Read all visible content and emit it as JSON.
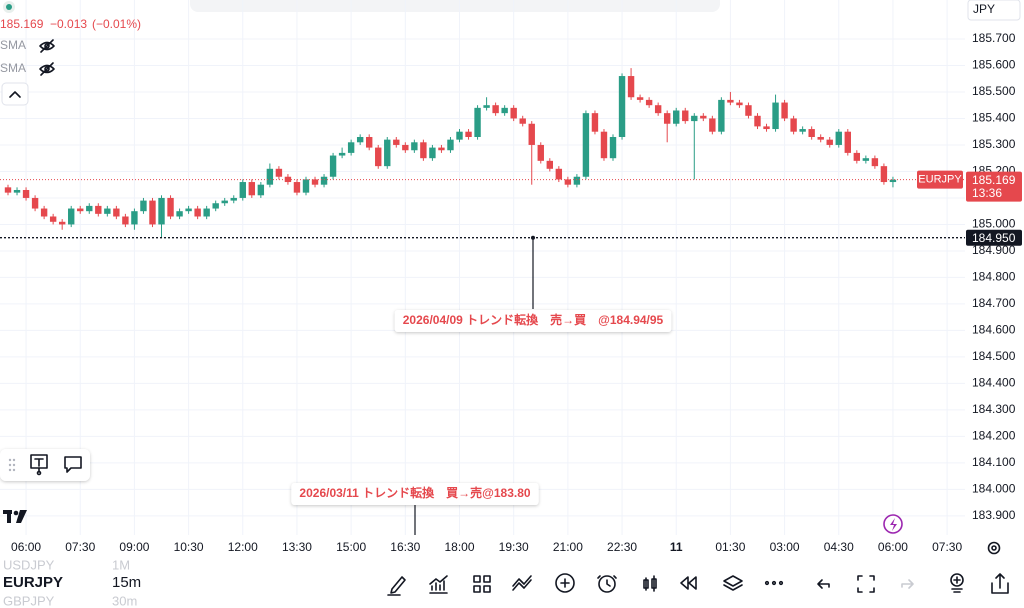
{
  "chart_data": {
    "type": "candlestick",
    "symbol": "EURJPY",
    "currency": "JPY",
    "legend": {
      "last": "185.169",
      "change": "−0.013",
      "change_pct": "(−0.01%)"
    },
    "indicators": [
      "SMA",
      "SMA"
    ],
    "categories": [
      null,
      null,
      "06:00",
      null,
      null,
      null,
      null,
      null,
      "07:30",
      null,
      null,
      null,
      null,
      null,
      "09:00",
      null,
      null,
      null,
      null,
      null,
      "10:30",
      null,
      null,
      null,
      null,
      null,
      "12:00",
      null,
      null,
      null,
      null,
      null,
      "13:30",
      null,
      null,
      null,
      null,
      null,
      "15:00",
      null,
      null,
      null,
      null,
      null,
      "16:30",
      null,
      null,
      null,
      null,
      null,
      "18:00",
      null,
      null,
      null,
      null,
      null,
      "19:30",
      null,
      null,
      null,
      null,
      null,
      "21:00",
      null,
      null,
      null,
      null,
      null,
      "22:30",
      null,
      null,
      null,
      null,
      null,
      "11",
      null,
      null,
      null,
      null,
      null,
      "01:30",
      null,
      null,
      null,
      null,
      null,
      "03:00",
      null,
      null,
      null,
      null,
      null,
      "04:30",
      null,
      null,
      null,
      null,
      null,
      "06:00",
      null,
      null,
      null,
      null,
      null,
      "07:30"
    ],
    "open": [
      185.14,
      185.12,
      185.13,
      185.1,
      185.06,
      185.03,
      185.01,
      185.0,
      185.06,
      185.05,
      185.07,
      185.04,
      185.06,
      185.03,
      185.0,
      185.05,
      185.09,
      185.0,
      185.1,
      185.03,
      185.05,
      185.06,
      185.03,
      185.06,
      185.08,
      185.09,
      185.1,
      185.16,
      185.11,
      185.15,
      185.21,
      185.18,
      185.16,
      185.12,
      185.17,
      185.15,
      185.18,
      185.26,
      185.27,
      185.31,
      185.33,
      185.29,
      185.22,
      185.32,
      185.3,
      185.28,
      185.31,
      185.25,
      185.29,
      185.28,
      185.32,
      185.35,
      185.33,
      185.44,
      185.45,
      185.42,
      185.44,
      185.4,
      185.38,
      185.3,
      185.24,
      185.21,
      185.17,
      185.15,
      185.18,
      185.42,
      185.35,
      185.25,
      185.33,
      185.56,
      185.48,
      185.47,
      185.45,
      185.42,
      185.38,
      185.43,
      185.39,
      185.41,
      185.4,
      185.35,
      185.47,
      185.46,
      185.45,
      185.41,
      185.37,
      185.36,
      185.46,
      185.4,
      185.35,
      185.36,
      185.33,
      185.32,
      185.3,
      185.35,
      185.27,
      185.24,
      185.25,
      185.22,
      185.16,
      null,
      null,
      null,
      null,
      null,
      null
    ],
    "high": [
      185.15,
      185.14,
      185.14,
      185.11,
      185.07,
      185.04,
      185.02,
      185.07,
      185.07,
      185.08,
      185.08,
      185.07,
      185.07,
      185.04,
      185.06,
      185.1,
      185.1,
      185.11,
      185.11,
      185.06,
      185.07,
      185.07,
      185.07,
      185.09,
      185.1,
      185.11,
      185.17,
      185.17,
      185.16,
      185.23,
      185.22,
      185.19,
      185.17,
      185.18,
      185.18,
      185.19,
      185.27,
      185.29,
      185.32,
      185.34,
      185.34,
      185.3,
      185.33,
      185.33,
      185.31,
      185.32,
      185.32,
      185.3,
      185.3,
      185.33,
      185.36,
      185.36,
      185.45,
      185.48,
      185.46,
      185.45,
      185.45,
      185.41,
      185.39,
      185.31,
      185.25,
      185.22,
      185.18,
      185.19,
      185.43,
      185.43,
      185.36,
      185.34,
      185.57,
      185.59,
      185.49,
      185.48,
      185.46,
      185.43,
      185.44,
      185.44,
      185.42,
      185.42,
      185.41,
      185.48,
      185.5,
      185.47,
      185.46,
      185.42,
      185.38,
      185.49,
      185.47,
      185.41,
      185.37,
      185.37,
      185.34,
      185.33,
      185.36,
      185.36,
      185.28,
      185.26,
      185.26,
      185.23,
      185.18,
      null,
      null,
      null,
      null,
      null,
      null
    ],
    "low": [
      185.11,
      185.11,
      185.09,
      185.05,
      185.02,
      185.0,
      184.98,
      184.99,
      185.04,
      185.04,
      185.03,
      185.03,
      185.02,
      184.99,
      184.98,
      185.04,
      184.99,
      184.95,
      185.02,
      185.02,
      185.04,
      185.02,
      185.02,
      185.05,
      185.07,
      185.08,
      185.09,
      185.1,
      185.1,
      185.14,
      185.17,
      185.15,
      185.11,
      185.11,
      185.14,
      185.14,
      185.17,
      185.25,
      185.26,
      185.3,
      185.28,
      185.21,
      185.21,
      185.29,
      185.27,
      185.27,
      185.24,
      185.24,
      185.27,
      185.27,
      185.31,
      185.32,
      185.32,
      185.43,
      185.41,
      185.41,
      185.39,
      185.37,
      185.15,
      185.23,
      185.2,
      185.16,
      185.14,
      185.14,
      185.17,
      185.34,
      185.24,
      185.24,
      185.32,
      185.47,
      185.46,
      185.44,
      185.41,
      185.31,
      185.37,
      185.38,
      185.17,
      185.39,
      185.34,
      185.34,
      185.45,
      185.44,
      185.4,
      185.36,
      185.35,
      185.35,
      185.39,
      185.34,
      185.34,
      185.32,
      185.31,
      185.29,
      185.29,
      185.26,
      185.23,
      185.23,
      185.21,
      185.15,
      185.14,
      null,
      null,
      null,
      null,
      null,
      null
    ],
    "close": [
      185.12,
      185.13,
      185.1,
      185.06,
      185.03,
      185.01,
      185.0,
      185.06,
      185.05,
      185.07,
      185.04,
      185.06,
      185.03,
      185.0,
      185.05,
      185.09,
      185.0,
      185.1,
      185.03,
      185.05,
      185.06,
      185.03,
      185.06,
      185.08,
      185.09,
      185.1,
      185.16,
      185.11,
      185.15,
      185.21,
      185.18,
      185.16,
      185.12,
      185.17,
      185.15,
      185.18,
      185.26,
      185.27,
      185.31,
      185.33,
      185.29,
      185.22,
      185.32,
      185.3,
      185.28,
      185.31,
      185.25,
      185.29,
      185.28,
      185.32,
      185.35,
      185.33,
      185.44,
      185.45,
      185.42,
      185.44,
      185.4,
      185.38,
      185.3,
      185.24,
      185.21,
      185.17,
      185.15,
      185.18,
      185.42,
      185.35,
      185.25,
      185.33,
      185.56,
      185.48,
      185.47,
      185.45,
      185.42,
      185.38,
      185.43,
      185.39,
      185.41,
      185.4,
      185.35,
      185.47,
      185.46,
      185.45,
      185.41,
      185.37,
      185.36,
      185.46,
      185.4,
      185.35,
      185.36,
      185.33,
      185.32,
      185.3,
      185.35,
      185.27,
      185.24,
      185.25,
      185.22,
      185.16,
      185.169,
      null,
      null,
      null,
      null,
      null,
      null
    ],
    "up_color": "#2a9d86",
    "down_color": "#e5484d",
    "ylim": [
      183.828,
      185.847
    ],
    "yticks": [
      {
        "value": 185.7,
        "label": "185.700"
      },
      {
        "value": 185.6,
        "label": "185.600"
      },
      {
        "value": 185.5,
        "label": "185.500"
      },
      {
        "value": 185.4,
        "label": "185.400"
      },
      {
        "value": 185.3,
        "label": "185.300"
      },
      {
        "value": 185.2,
        "label": "185.200"
      },
      {
        "value": 185.1,
        "label": "185.100"
      },
      {
        "value": 185.0,
        "label": "185.000"
      },
      {
        "value": 184.9,
        "label": "184.900"
      },
      {
        "value": 184.8,
        "label": "184.800"
      },
      {
        "value": 184.7,
        "label": "184.700"
      },
      {
        "value": 184.6,
        "label": "184.600"
      },
      {
        "value": 184.5,
        "label": "184.500"
      },
      {
        "value": 184.4,
        "label": "184.400"
      },
      {
        "value": 184.3,
        "label": "184.300"
      },
      {
        "value": 184.2,
        "label": "184.200"
      },
      {
        "value": 184.1,
        "label": "184.100"
      },
      {
        "value": 184.0,
        "label": "184.000"
      },
      {
        "value": 183.9,
        "label": "183.900"
      }
    ],
    "grid": true,
    "last_price": 185.169,
    "countdown": "13:36",
    "alert_line": {
      "value": 184.95,
      "label": "184.950"
    },
    "annotations": [
      "2026/04/09 トレンド転換　売→買　@184.94/95",
      "2026/03/11 トレンド転換　買→売@183.80"
    ]
  },
  "toolbar": {
    "symbols": [
      {
        "symbol": "USDJPY",
        "interval": "1M"
      },
      {
        "symbol": "EURJPY",
        "interval": "15m"
      },
      {
        "symbol": "GBPJPY",
        "interval": "30m"
      }
    ]
  }
}
